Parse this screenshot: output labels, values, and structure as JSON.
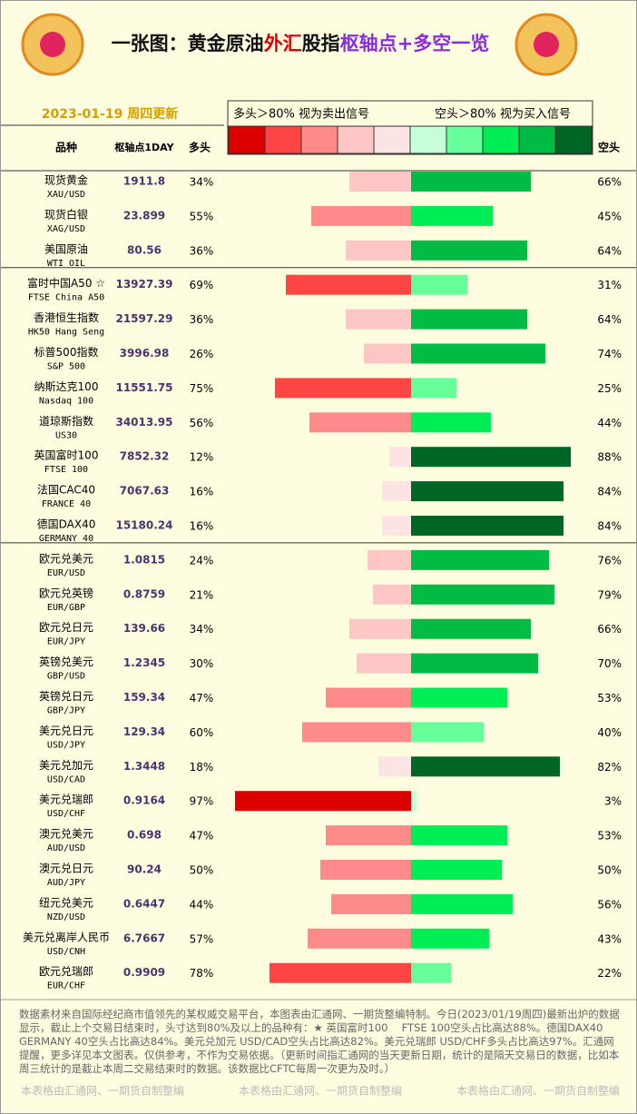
{
  "header": {
    "title_parts": [
      {
        "text": "一张图：黄金原油",
        "color": "#111111"
      },
      {
        "text": "外汇",
        "color": "#dd0000"
      },
      {
        "text": "股指",
        "color": "#111111"
      },
      {
        "text": "枢轴点+多空一览",
        "color": "#8a2be2"
      }
    ],
    "date": "2023-01-19 周四更新"
  },
  "columns": {
    "name": "品种",
    "pivot": "枢轴点1DAY",
    "long": "多头",
    "short": "空头"
  },
  "legend": {
    "long_note": "多头＞80% 视为卖出信号",
    "short_note": "空头＞80% 视为买入信号",
    "colors": [
      "#dd0000",
      "#ff4444",
      "#ff8a8a",
      "#ffc6c6",
      "#fde4e4",
      "#c6ffd9",
      "#66ff99",
      "#00ee55",
      "#00bb44",
      "#006626"
    ]
  },
  "groups": [
    {
      "rows": [
        {
          "name": "现货黄金",
          "code": "XAU/USD",
          "pivot": "1911.8",
          "long": 34,
          "long_label": "34%",
          "short": 66,
          "short_label": "66%"
        },
        {
          "name": "现货白银",
          "code": "XAG/USD",
          "pivot": "23.899",
          "long": 55,
          "long_label": "55%",
          "short": 45,
          "short_label": "45%"
        },
        {
          "name": "美国原油",
          "code": "WTI OIL",
          "pivot": "80.56",
          "long": 36,
          "long_label": "36%",
          "short": 64,
          "short_label": "64%"
        }
      ]
    },
    {
      "rows": [
        {
          "name": "富时中国A50 ☆",
          "code": "FTSE China A50",
          "pivot": "13927.39",
          "long": 69,
          "long_label": "69%",
          "short": 31,
          "short_label": "31%"
        },
        {
          "name": "香港恒生指数",
          "code": "HK50 Hang Seng",
          "pivot": "21597.29",
          "long": 36,
          "long_label": "36%",
          "short": 64,
          "short_label": "64%"
        },
        {
          "name": "标普500指数",
          "code": "S&P 500",
          "pivot": "3996.98",
          "long": 26,
          "long_label": "26%",
          "short": 74,
          "short_label": "74%"
        },
        {
          "name": "纳斯达克100",
          "code": "Nasdaq 100",
          "pivot": "11551.75",
          "long": 75,
          "long_label": "75%",
          "short": 25,
          "short_label": "25%"
        },
        {
          "name": "道琼斯指数",
          "code": "US30",
          "pivot": "34013.95",
          "long": 56,
          "long_label": "56%",
          "short": 44,
          "short_label": "44%"
        },
        {
          "name": "英国富时100",
          "code": "FTSE 100",
          "pivot": "7852.32",
          "long": 12,
          "long_label": "12%",
          "short": 88,
          "short_label": "88%"
        },
        {
          "name": "法国CAC40",
          "code": "FRANCE 40",
          "pivot": "7067.63",
          "long": 16,
          "long_label": "16%",
          "short": 84,
          "short_label": "84%"
        },
        {
          "name": "德国DAX40",
          "code": "GERMANY 40",
          "pivot": "15180.24",
          "long": 16,
          "long_label": "16%",
          "short": 84,
          "short_label": "84%"
        }
      ]
    },
    {
      "rows": [
        {
          "name": "欧元兑美元",
          "code": "EUR/USD",
          "pivot": "1.0815",
          "long": 24,
          "long_label": "24%",
          "short": 76,
          "short_label": "76%"
        },
        {
          "name": "欧元兑英镑",
          "code": "EUR/GBP",
          "pivot": "0.8759",
          "long": 21,
          "long_label": "21%",
          "short": 79,
          "short_label": "79%"
        },
        {
          "name": "欧元兑日元",
          "code": "EUR/JPY",
          "pivot": "139.66",
          "long": 34,
          "long_label": "34%",
          "short": 66,
          "short_label": "66%"
        },
        {
          "name": "英镑兑美元",
          "code": "GBP/USD",
          "pivot": "1.2345",
          "long": 30,
          "long_label": "30%",
          "short": 70,
          "short_label": "70%"
        },
        {
          "name": "英镑兑日元",
          "code": "GBP/JPY",
          "pivot": "159.34",
          "long": 47,
          "long_label": "47%",
          "short": 53,
          "short_label": "53%"
        },
        {
          "name": "美元兑日元",
          "code": "USD/JPY",
          "pivot": "129.34",
          "long": 60,
          "long_label": "60%",
          "short": 40,
          "short_label": "40%"
        },
        {
          "name": "美元兑加元",
          "code": "USD/CAD",
          "pivot": "1.3448",
          "long": 18,
          "long_label": "18%",
          "short": 82,
          "short_label": "82%"
        },
        {
          "name": "美元兑瑞郎",
          "code": "USD/CHF",
          "pivot": "0.9164",
          "long": 97,
          "long_label": "97%",
          "short": 3,
          "short_label": "3%"
        },
        {
          "name": "澳元兑美元",
          "code": "AUD/USD",
          "pivot": "0.698",
          "long": 47,
          "long_label": "47%",
          "short": 53,
          "short_label": "53%"
        },
        {
          "name": "澳元兑日元",
          "code": "AUD/JPY",
          "pivot": "90.24",
          "long": 50,
          "long_label": "50%",
          "short": 50,
          "short_label": "50%"
        },
        {
          "name": "纽元兑美元",
          "code": "NZD/USD",
          "pivot": "0.6447",
          "long": 44,
          "long_label": "44%",
          "short": 56,
          "short_label": "56%"
        },
        {
          "name": "美元兑离岸人民币",
          "code": "USD/CNH",
          "pivot": "6.7667",
          "long": 57,
          "long_label": "57%",
          "short": 43,
          "short_label": "43%"
        },
        {
          "name": "欧元兑瑞郎",
          "code": "EUR/CHF",
          "pivot": "0.9909",
          "long": 78,
          "long_label": "78%",
          "short": 22,
          "short_label": "22%"
        }
      ]
    }
  ],
  "footer": {
    "text": "数据素材来自国际经纪商市值领先的某权威交易平台，本图表由汇通网、一期货整编特制。今日(2023/01/19周四)最新出炉的数据显示，截止上个交易日结束时，头寸达到80%及以上的品种有：★ 英国富时100　 FTSE 100空头占比高达88%。德国DAX40　 GERMANY 40空头占比高达84%。美元兑加元 USD/CAD空头占比高达82%。美元兑瑞郎 USD/CHF多头占比高达97%。汇通网提醒，更多详见本文图表。仅供参考，不作为交易依据。（更新时间指汇通网的当天更新日期，统计的是隔天交易日的数据，比如本周三统计的是截止本周二交易结束时的数据。该数据比CFTC每周一次更为及时。）",
    "watermarks": [
      "本表格由汇通网、一期货自制整编",
      "本表格由汇通网、一期货自制整编",
      "本表格由汇通网、一期货自制整编"
    ]
  }
}
